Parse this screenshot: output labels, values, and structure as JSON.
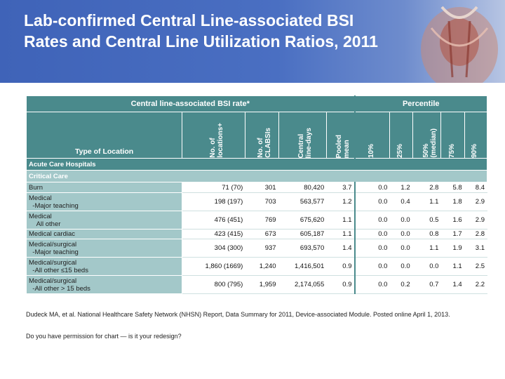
{
  "slide": {
    "title_line1": "Lab-confirmed Central Line-associated BSI",
    "title_line2": "Rates and Central Line Utilization Ratios, 2011"
  },
  "table": {
    "group_header_left": "Central line-associated BSI rate*",
    "group_header_right": "Percentile",
    "columns": {
      "type": "Type of Location",
      "locations": "No. of\nlocations+",
      "clabsis": "No. of\nCLABSIs",
      "line_days": "Central\nline-days",
      "pooled_mean": "Pooled\nmean",
      "p10": "10%",
      "p25": "25%",
      "p50": "50%\n(median)",
      "p75": "75%",
      "p90": "90%"
    },
    "section": "Acute Care Hospitals",
    "subsection": "Critical Care",
    "rows": [
      {
        "type_line1": "Burn",
        "type_line2": "",
        "locations": "71 (70)",
        "clabsis": "301",
        "line_days": "80,420",
        "pooled_mean": "3.7",
        "p10": "0.0",
        "p25": "1.2",
        "p50": "2.8",
        "p75": "5.8",
        "p90": "8.4"
      },
      {
        "type_line1": "Medical",
        "type_line2": "-Major teaching",
        "locations": "198 (197)",
        "clabsis": "703",
        "line_days": "563,577",
        "pooled_mean": "1.2",
        "p10": "0.0",
        "p25": "0.4",
        "p50": "1.1",
        "p75": "1.8",
        "p90": "2.9"
      },
      {
        "type_line1": "Medical",
        "type_line2": "All other",
        "locations": "476 (451)",
        "clabsis": "769",
        "line_days": "675,620",
        "pooled_mean": "1.1",
        "p10": "0.0",
        "p25": "0.0",
        "p50": "0.5",
        "p75": "1.6",
        "p90": "2.9"
      },
      {
        "type_line1": "Medical cardiac",
        "type_line2": "",
        "locations": "423 (415)",
        "clabsis": "673",
        "line_days": "605,187",
        "pooled_mean": "1.1",
        "p10": "0.0",
        "p25": "0.0",
        "p50": "0.8",
        "p75": "1.7",
        "p90": "2.8"
      },
      {
        "type_line1": "Medical/surgical",
        "type_line2": "-Major teaching",
        "locations": "304 (300)",
        "clabsis": "937",
        "line_days": "693,570",
        "pooled_mean": "1.4",
        "p10": "0.0",
        "p25": "0.0",
        "p50": "1.1",
        "p75": "1.9",
        "p90": "3.1"
      },
      {
        "type_line1": "Medical/surgical",
        "type_line2": "-All other ≤15 beds",
        "locations": "1,860 (1669)",
        "clabsis": "1,240",
        "line_days": "1,416,501",
        "pooled_mean": "0.9",
        "p10": "0.0",
        "p25": "0.0",
        "p50": "0.0",
        "p75": "1.1",
        "p90": "2.5"
      },
      {
        "type_line1": "Medical/surgical",
        "type_line2": "-All other > 15 beds",
        "locations": "800 (795)",
        "clabsis": "1,959",
        "line_days": "2,174,055",
        "pooled_mean": "0.9",
        "p10": "0.0",
        "p25": "0.2",
        "p50": "0.7",
        "p75": "1.4",
        "p90": "2.2"
      }
    ]
  },
  "citation": "Dudeck MA, et al. National Healthcare Safety Network (NHSN) Report, Data Summary for 2011, Device-associated Module. Posted online April 1, 2013.",
  "note": "Do you have permission for chart — is it your redesign?",
  "colors": {
    "banner": "#3f63b8",
    "table_header": "#4a8a8c",
    "table_sub": "#a3c8c9"
  },
  "icons": {
    "banner_image": "anatomy-illustration"
  }
}
